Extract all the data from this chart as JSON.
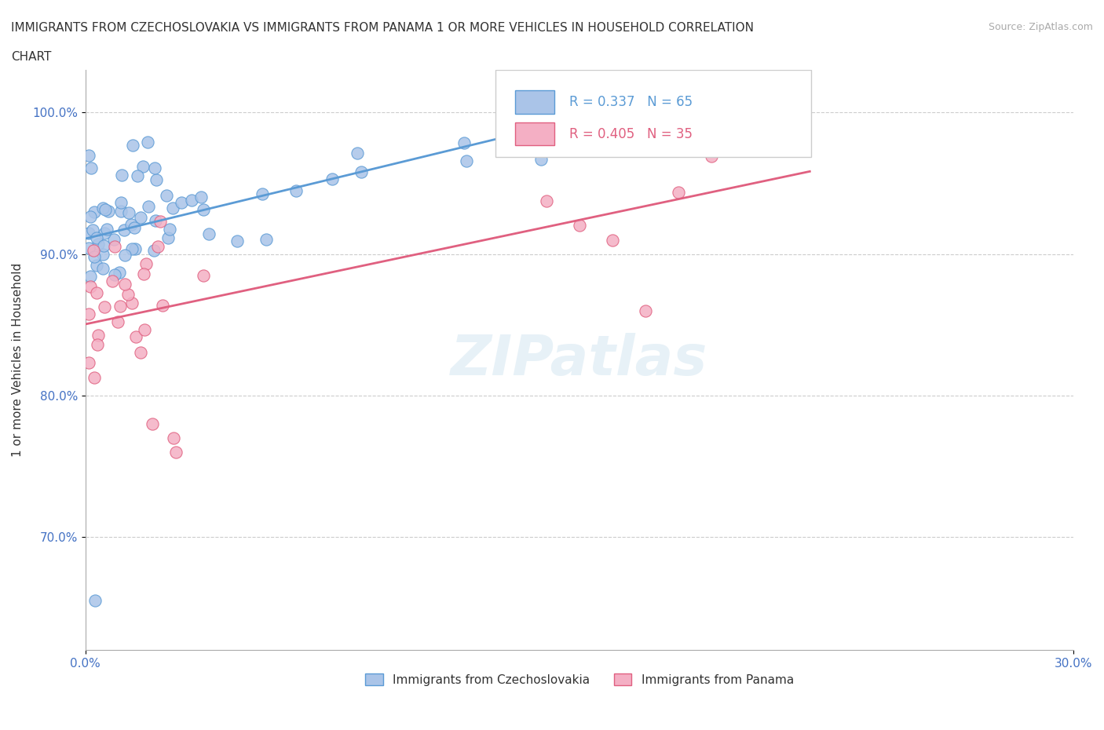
{
  "title_line1": "IMMIGRANTS FROM CZECHOSLOVAKIA VS IMMIGRANTS FROM PANAMA 1 OR MORE VEHICLES IN HOUSEHOLD CORRELATION",
  "title_line2": "CHART",
  "source": "Source: ZipAtlas.com",
  "ylabel": "1 or more Vehicles in Household",
  "yaxis_labels": [
    "100.0%",
    "90.0%",
    "80.0%",
    "70.0%"
  ],
  "yaxis_values": [
    1.0,
    0.9,
    0.8,
    0.7
  ],
  "xlim": [
    0.0,
    0.3
  ],
  "ylim": [
    0.62,
    1.03
  ],
  "legend_R1": "R = 0.337",
  "legend_N1": "N = 65",
  "legend_R2": "R = 0.405",
  "legend_N2": "N = 35",
  "color_czech": "#aac4e8",
  "color_panama": "#f4afc4",
  "color_line_czech": "#5b9bd5",
  "color_line_panama": "#e06080",
  "color_axis_labels": "#4472c4",
  "watermark": "ZIPatlas"
}
